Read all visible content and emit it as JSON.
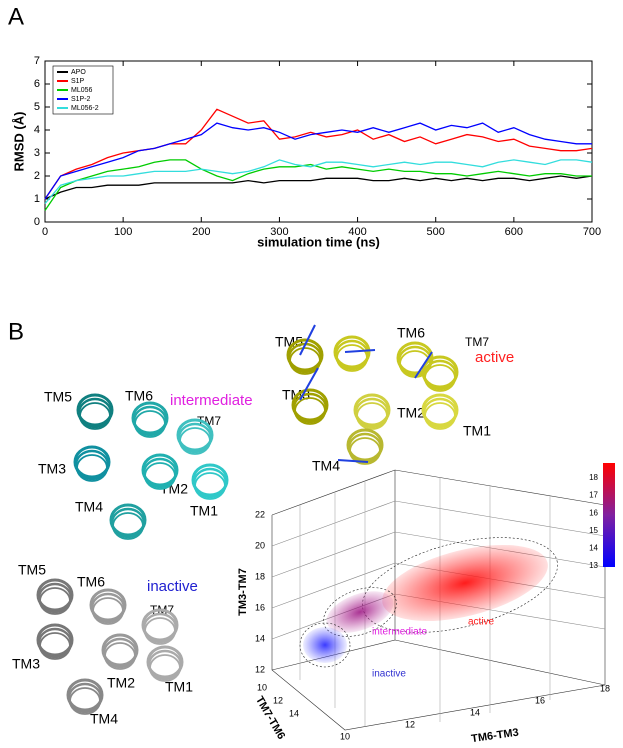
{
  "panel_a": {
    "label": "A"
  },
  "chart_data": {
    "type": "line",
    "xlabel": "simulation time (ns)",
    "ylabel": "RMSD (Å)",
    "x": [
      0,
      20,
      40,
      60,
      80,
      100,
      120,
      140,
      160,
      180,
      200,
      220,
      240,
      260,
      280,
      300,
      320,
      340,
      360,
      380,
      400,
      420,
      440,
      460,
      480,
      500,
      520,
      540,
      560,
      580,
      600,
      620,
      640,
      660,
      680,
      700
    ],
    "series": [
      {
        "name": "APO",
        "color": "#000000",
        "values": [
          1.0,
          1.3,
          1.5,
          1.5,
          1.6,
          1.6,
          1.6,
          1.7,
          1.7,
          1.7,
          1.7,
          1.7,
          1.7,
          1.8,
          1.7,
          1.8,
          1.8,
          1.8,
          1.9,
          1.9,
          1.9,
          1.8,
          1.8,
          1.9,
          1.8,
          1.9,
          1.8,
          1.9,
          1.8,
          1.9,
          1.9,
          1.8,
          1.9,
          2.0,
          1.9,
          2.0
        ]
      },
      {
        "name": "S1P",
        "color": "#ff0000",
        "values": [
          1.0,
          2.0,
          2.3,
          2.5,
          2.8,
          3.0,
          3.1,
          3.2,
          3.4,
          3.4,
          4.0,
          4.9,
          4.6,
          4.3,
          4.4,
          3.6,
          3.7,
          3.9,
          3.7,
          3.8,
          4.0,
          3.6,
          3.8,
          3.5,
          3.7,
          3.4,
          3.6,
          3.8,
          3.7,
          3.5,
          3.6,
          3.3,
          3.2,
          3.1,
          3.1,
          3.2
        ]
      },
      {
        "name": "ML056",
        "color": "#00cc00",
        "values": [
          0.5,
          1.5,
          1.8,
          2.0,
          2.2,
          2.3,
          2.4,
          2.6,
          2.7,
          2.7,
          2.3,
          2.0,
          1.8,
          2.1,
          2.3,
          2.4,
          2.4,
          2.5,
          2.3,
          2.4,
          2.3,
          2.2,
          2.3,
          2.2,
          2.2,
          2.1,
          2.1,
          2.0,
          2.1,
          2.2,
          2.1,
          2.0,
          2.1,
          2.1,
          2.0,
          2.0
        ]
      },
      {
        "name": "S1P-2",
        "color": "#0000ff",
        "values": [
          1.0,
          2.0,
          2.2,
          2.4,
          2.6,
          2.8,
          3.1,
          3.2,
          3.4,
          3.6,
          3.8,
          4.3,
          4.1,
          4.0,
          4.1,
          3.9,
          3.6,
          3.8,
          3.9,
          4.0,
          3.9,
          4.1,
          3.9,
          4.1,
          4.3,
          4.0,
          4.2,
          4.1,
          4.3,
          3.9,
          4.1,
          3.8,
          3.6,
          3.5,
          3.4,
          3.4
        ]
      },
      {
        "name": "ML056-2",
        "color": "#33dddd",
        "values": [
          0.8,
          1.6,
          1.8,
          1.9,
          2.0,
          2.0,
          2.1,
          2.2,
          2.2,
          2.2,
          2.3,
          2.2,
          2.1,
          2.2,
          2.4,
          2.7,
          2.5,
          2.4,
          2.6,
          2.6,
          2.5,
          2.4,
          2.5,
          2.6,
          2.5,
          2.6,
          2.6,
          2.5,
          2.4,
          2.6,
          2.7,
          2.6,
          2.5,
          2.7,
          2.7,
          2.6
        ]
      }
    ],
    "xlim": [
      0,
      700
    ],
    "xticks": [
      0,
      100,
      200,
      300,
      400,
      500,
      600,
      700
    ],
    "ylim": [
      0,
      7
    ],
    "yticks": [
      0,
      1,
      2,
      3,
      4,
      5,
      6,
      7
    ]
  },
  "panel_b": {
    "label": "B",
    "active": {
      "state": "active",
      "helices": [
        "TM5",
        "TM6",
        "TM7",
        "TM3",
        "TM2",
        "TM1",
        "TM4"
      ]
    },
    "intermediate": {
      "state": "intermediate",
      "helices": [
        "TM5",
        "TM6",
        "TM7",
        "TM3",
        "TM2",
        "TM4",
        "TM1"
      ]
    },
    "inactive": {
      "state": "inactive",
      "helices": [
        "TM5",
        "TM6",
        "TM7",
        "TM3",
        "TM2",
        "TM1",
        "TM4"
      ]
    },
    "landscape": {
      "z_label": "TM3-TM7",
      "x_label": "TM7-TM6",
      "y_label": "TM6-TM3",
      "z_ticks": [
        12,
        14,
        16,
        18,
        20,
        22
      ],
      "x_ticks": [
        10,
        12,
        14
      ],
      "y_ticks": [
        10,
        12,
        14,
        16,
        18
      ],
      "clusters": [
        "inactive",
        "intermediate",
        "active"
      ],
      "colorbar_ticks": [
        18,
        17,
        16,
        15,
        14,
        13
      ]
    }
  }
}
